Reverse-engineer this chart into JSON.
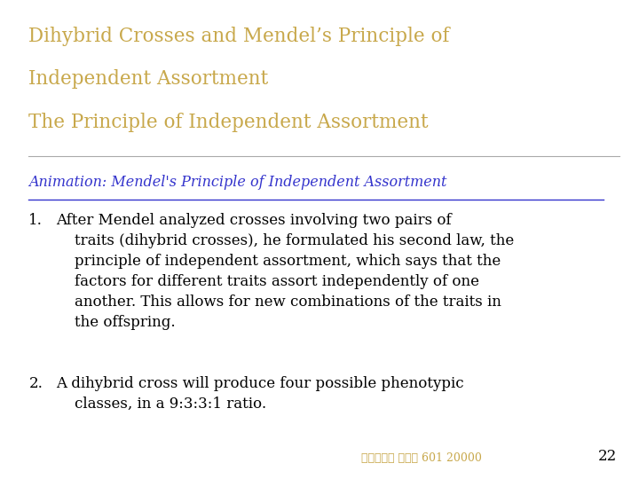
{
  "background_color": "#ffffff",
  "title_line1": "Dihybrid Crosses and Mendel’s Principle of",
  "title_line2": "Independent Assortment",
  "title_line3": "The Principle of Independent Assortment",
  "title_color": "#c8a84b",
  "link_text": "Animation: Mendel's Principle of Independent Assortment",
  "link_color": "#3333cc",
  "body_color": "#000000",
  "point1_number": "1.",
  "point1_text": "After Mendel analyzed crosses involving two pairs of\n    traits (dihybrid crosses), he formulated his second law, the\n    principle of independent assortment, which says that the\n    factors for different traits assort independently of one\n    another. This allows for new combinations of the traits in\n    the offspring.",
  "point2_number": "2.",
  "point2_text": "A dihybrid cross will produce four possible phenotypic\n    classes, in a 9:3:3:1 ratio.",
  "footer_text": "台大農藝系 遺傳學 601 20000",
  "footer_color": "#c8a84b",
  "page_number": "22",
  "page_color": "#000000"
}
